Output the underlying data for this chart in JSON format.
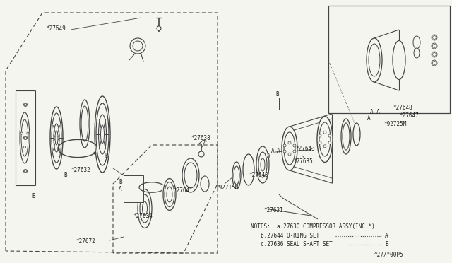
{
  "bg_color": "#f5f5f0",
  "line_color": "#444444",
  "text_color": "#222222",
  "fig_w": 6.4,
  "fig_h": 3.72,
  "dpi": 100,
  "notes": [
    "NOTES:  a.27630 COMPRESSOR ASSY(INC.*)",
    "        b.27644 O-RING SET",
    "        c.27636 SEAL SHAFT SET"
  ],
  "footer": "^27/*00P5"
}
